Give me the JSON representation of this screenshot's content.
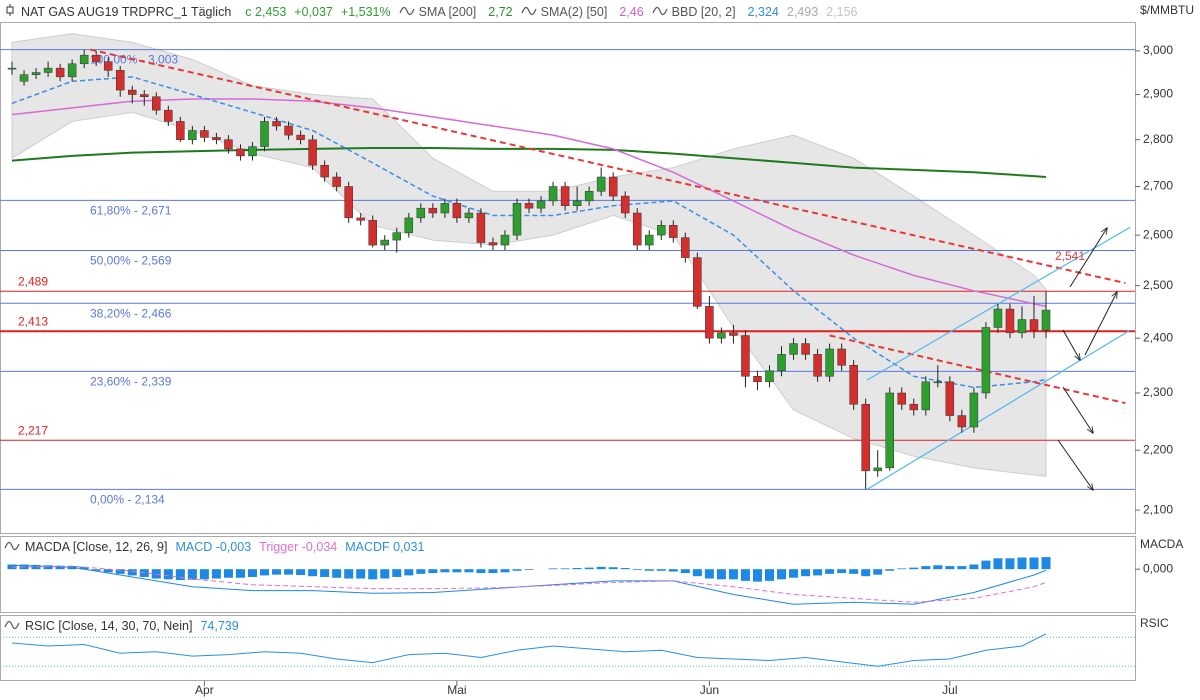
{
  "chart_data": [
    {
      "type": "candlestick",
      "title": "NAT GAS AUG19 TRDPRC_1 Täglich",
      "items": [
        {
          "text": "c 2,453",
          "color": "#2e9e2e"
        },
        {
          "text": "+0,037",
          "color": "#2e9e2e"
        },
        {
          "text": "+1,531%",
          "color": "#2e9e2e"
        },
        {
          "text": "SMA [200]",
          "color": "#555555",
          "icon": true
        },
        {
          "text": "2,72",
          "color": "#2e8b2e"
        },
        {
          "text": "SMA(2) [50]",
          "color": "#555555",
          "icon": true
        },
        {
          "text": "2,46",
          "color": "#d05fd0"
        },
        {
          "text": "BBD [20, 2]",
          "color": "#555555",
          "icon": true
        },
        {
          "text": "2,324",
          "color": "#2b8fe0"
        },
        {
          "text": "2,493",
          "color": "#aaaaaa"
        },
        {
          "text": "2,156",
          "color": "#c4c4c4"
        }
      ],
      "ylabel": "$/MMBTU",
      "log": true,
      "ylim": [
        2.063,
        3.068
      ],
      "yticks": [
        {
          "value": 2.1,
          "label": "2,100"
        },
        {
          "value": 2.2,
          "label": "2,200"
        },
        {
          "value": 2.3,
          "label": "2,300"
        },
        {
          "value": 2.4,
          "label": "2,400"
        },
        {
          "value": 2.5,
          "label": "2,500"
        },
        {
          "value": 2.6,
          "label": "2,600"
        },
        {
          "value": 2.7,
          "label": "2,700"
        },
        {
          "value": 2.8,
          "label": "2,800"
        },
        {
          "value": 2.9,
          "label": "2,900"
        },
        {
          "value": 3.0,
          "label": "3,000"
        }
      ],
      "xlim": [
        -1,
        93.4
      ],
      "xticks": [
        {
          "value": 16,
          "label": "Apr"
        },
        {
          "value": 37,
          "label": "Mai"
        },
        {
          "value": 58,
          "label": "Jun"
        },
        {
          "value": 78,
          "label": "Jul"
        }
      ],
      "up_color": "#2e9e2e",
      "down_color": "#d32f2f",
      "open": [
        2.958,
        2.93,
        2.945,
        2.95,
        2.96,
        2.94,
        2.97,
        2.99,
        2.975,
        2.955,
        2.91,
        2.9,
        2.895,
        2.865,
        2.84,
        2.8,
        2.82,
        2.805,
        2.8,
        2.78,
        2.765,
        2.785,
        2.84,
        2.83,
        2.81,
        2.8,
        2.745,
        2.72,
        2.7,
        2.635,
        2.63,
        2.58,
        2.59,
        2.605,
        2.635,
        2.655,
        2.645,
        2.665,
        2.635,
        2.645,
        2.585,
        2.58,
        2.6,
        2.665,
        2.655,
        2.67,
        2.7,
        2.66,
        2.67,
        2.69,
        2.72,
        2.68,
        2.645,
        2.58,
        2.6,
        2.62,
        2.595,
        2.555,
        2.46,
        2.4,
        2.41,
        2.405,
        2.33,
        2.32,
        2.34,
        2.37,
        2.39,
        2.37,
        2.33,
        2.38,
        2.35,
        2.28,
        2.165,
        2.17,
        2.3,
        2.28,
        2.27,
        2.32,
        2.32,
        2.26,
        2.24,
        2.3,
        2.42,
        2.455,
        2.41,
        2.435,
        2.415
      ],
      "high": [
        2.975,
        2.955,
        2.96,
        2.975,
        2.97,
        2.98,
        3.003,
        3.0,
        2.985,
        2.965,
        2.92,
        2.91,
        2.905,
        2.875,
        2.85,
        2.83,
        2.83,
        2.815,
        2.81,
        2.79,
        2.795,
        2.85,
        2.85,
        2.84,
        2.82,
        2.81,
        2.755,
        2.73,
        2.71,
        2.645,
        2.64,
        2.6,
        2.615,
        2.645,
        2.665,
        2.665,
        2.675,
        2.675,
        2.655,
        2.655,
        2.595,
        2.61,
        2.675,
        2.675,
        2.68,
        2.71,
        2.71,
        2.7,
        2.7,
        2.74,
        2.73,
        2.69,
        2.655,
        2.61,
        2.63,
        2.63,
        2.605,
        2.565,
        2.48,
        2.42,
        2.425,
        2.415,
        2.34,
        2.35,
        2.385,
        2.4,
        2.4,
        2.38,
        2.39,
        2.39,
        2.36,
        2.29,
        2.2,
        2.31,
        2.31,
        2.29,
        2.33,
        2.35,
        2.33,
        2.27,
        2.31,
        2.43,
        2.465,
        2.465,
        2.46,
        2.48,
        2.489
      ],
      "low": [
        2.945,
        2.92,
        2.935,
        2.94,
        2.93,
        2.93,
        2.96,
        2.965,
        2.94,
        2.895,
        2.88,
        2.875,
        2.855,
        2.83,
        2.795,
        2.79,
        2.795,
        2.79,
        2.77,
        2.755,
        2.755,
        2.775,
        2.82,
        2.8,
        2.79,
        2.735,
        2.71,
        2.69,
        2.625,
        2.62,
        2.575,
        2.57,
        2.565,
        2.595,
        2.625,
        2.635,
        2.635,
        2.625,
        2.625,
        2.575,
        2.57,
        2.57,
        2.59,
        2.645,
        2.645,
        2.66,
        2.65,
        2.65,
        2.66,
        2.68,
        2.67,
        2.635,
        2.57,
        2.57,
        2.59,
        2.585,
        2.545,
        2.455,
        2.39,
        2.39,
        2.39,
        2.31,
        2.305,
        2.31,
        2.33,
        2.36,
        2.36,
        2.32,
        2.32,
        2.34,
        2.27,
        2.134,
        2.155,
        2.165,
        2.27,
        2.26,
        2.26,
        2.31,
        2.25,
        2.23,
        2.23,
        2.29,
        2.41,
        2.4,
        2.4,
        2.4,
        2.4
      ],
      "close": [
        2.96,
        2.945,
        2.95,
        2.96,
        2.94,
        2.97,
        2.99,
        2.975,
        2.955,
        2.91,
        2.9,
        2.895,
        2.865,
        2.84,
        2.8,
        2.82,
        2.805,
        2.8,
        2.78,
        2.765,
        2.785,
        2.84,
        2.83,
        2.81,
        2.8,
        2.745,
        2.72,
        2.7,
        2.635,
        2.63,
        2.58,
        2.59,
        2.605,
        2.635,
        2.655,
        2.645,
        2.665,
        2.635,
        2.645,
        2.585,
        2.58,
        2.6,
        2.665,
        2.655,
        2.67,
        2.7,
        2.66,
        2.67,
        2.69,
        2.72,
        2.68,
        2.645,
        2.58,
        2.6,
        2.62,
        2.595,
        2.555,
        2.46,
        2.4,
        2.41,
        2.405,
        2.33,
        2.32,
        2.34,
        2.37,
        2.39,
        2.37,
        2.33,
        2.38,
        2.35,
        2.28,
        2.165,
        2.17,
        2.3,
        2.28,
        2.27,
        2.32,
        2.32,
        2.26,
        2.24,
        2.3,
        2.42,
        2.455,
        2.41,
        2.435,
        2.415,
        2.453
      ],
      "band": {
        "color": "#e4e4e4",
        "x": [
          0,
          5,
          10,
          15,
          20,
          25,
          30,
          35,
          40,
          45,
          50,
          55,
          60,
          65,
          70,
          75,
          80,
          85,
          86
        ],
        "upper": [
          3.02,
          3.04,
          3.02,
          2.98,
          2.92,
          2.9,
          2.89,
          2.76,
          2.69,
          2.69,
          2.72,
          2.74,
          2.78,
          2.81,
          2.76,
          2.68,
          2.6,
          2.52,
          2.493
        ],
        "lower": [
          2.76,
          2.84,
          2.86,
          2.82,
          2.77,
          2.74,
          2.62,
          2.59,
          2.58,
          2.6,
          2.64,
          2.6,
          2.42,
          2.27,
          2.22,
          2.19,
          2.17,
          2.158,
          2.156
        ]
      },
      "lines": [
        {
          "color": "#1f7a1f",
          "width": 2,
          "dash": false,
          "x": [
            0,
            5,
            10,
            15,
            20,
            25,
            30,
            35,
            40,
            45,
            50,
            55,
            60,
            65,
            70,
            75,
            80,
            85,
            86
          ],
          "values": [
            2.755,
            2.765,
            2.772,
            2.775,
            2.778,
            2.78,
            2.782,
            2.782,
            2.78,
            2.78,
            2.778,
            2.77,
            2.76,
            2.75,
            2.74,
            2.735,
            2.73,
            2.722,
            2.72
          ]
        },
        {
          "color": "#d46bd4",
          "width": 1.5,
          "dash": false,
          "x": [
            0,
            5,
            10,
            15,
            20,
            25,
            30,
            35,
            40,
            45,
            50,
            55,
            60,
            65,
            70,
            75,
            80,
            85,
            86
          ],
          "values": [
            2.855,
            2.87,
            2.885,
            2.89,
            2.89,
            2.885,
            2.87,
            2.85,
            2.83,
            2.81,
            2.78,
            2.73,
            2.67,
            2.61,
            2.56,
            2.52,
            2.49,
            2.465,
            2.46
          ]
        },
        {
          "color": "#3a8ee6",
          "width": 1.5,
          "dash": true,
          "x": [
            0,
            5,
            10,
            15,
            20,
            25,
            30,
            35,
            40,
            45,
            50,
            55,
            60,
            65,
            70,
            75,
            80,
            85,
            86
          ],
          "values": [
            2.88,
            2.93,
            2.94,
            2.9,
            2.86,
            2.82,
            2.75,
            2.68,
            2.64,
            2.64,
            2.66,
            2.67,
            2.6,
            2.49,
            2.4,
            2.33,
            2.31,
            2.32,
            2.324
          ]
        }
      ],
      "fib_levels": [
        {
          "value": 3.003,
          "label": "100,00% - 3,003"
        },
        {
          "value": 2.671,
          "label": "61,80% - 2,671"
        },
        {
          "value": 2.569,
          "label": "50,00% - 2,569"
        },
        {
          "value": 2.466,
          "label": "38,20% - 2,466"
        },
        {
          "value": 2.339,
          "label": "23,60% - 2,339"
        },
        {
          "value": 2.134,
          "label": "0,00% - 2,134"
        }
      ],
      "fib_color": "#5b78e0",
      "levels": [
        {
          "value": 2.489,
          "label": "2,489",
          "width": 1
        },
        {
          "value": 2.413,
          "label": "2,413",
          "width": 2
        },
        {
          "value": 2.217,
          "label": "2,217",
          "width": 1
        }
      ],
      "level_color": "#e02020",
      "trendlines": [
        {
          "x": [
            6.5,
            92.6
          ],
          "y": [
            3.003,
            2.505
          ],
          "color": "#e53935",
          "dash": true
        },
        {
          "x": [
            68,
            92.6
          ],
          "y": [
            2.405,
            2.282
          ],
          "color": "#e53935",
          "dash": true
        },
        {
          "x": [
            71.1,
            93
          ],
          "y": [
            2.134,
            2.415
          ],
          "color": "#4fb8f0",
          "dash": false
        },
        {
          "x": [
            71.1,
            93
          ],
          "y": [
            2.323,
            2.616
          ],
          "color": "#4fb8f0",
          "dash": false
        }
      ],
      "annotation": {
        "text": "2,541",
        "color": "#e53935"
      }
    },
    {
      "type": "macd",
      "title": "MACDA [Close, 12, 26, 9]",
      "items": [
        {
          "text": "MACD -0,003",
          "color": "#2b8fe0"
        },
        {
          "text": "Trigger -0,034",
          "color": "#e070c8"
        },
        {
          "text": "MACDF 0,031",
          "color": "#2b8fe0"
        }
      ],
      "ylabel": "MACDA",
      "ylim": [
        -0.11,
        0.075
      ],
      "yticks": [
        {
          "value": 0,
          "label": "0,000"
        }
      ],
      "histogram": {
        "color": "#1e88e5",
        "values": [
          0.012,
          0.012,
          0.011,
          0.01,
          0.009,
          0.008,
          0.006,
          -0.004,
          -0.008,
          -0.012,
          -0.016,
          -0.02,
          -0.024,
          -0.026,
          -0.028,
          -0.027,
          -0.026,
          -0.024,
          -0.022,
          -0.022,
          -0.02,
          -0.016,
          -0.014,
          -0.014,
          -0.015,
          -0.018,
          -0.02,
          -0.022,
          -0.024,
          -0.024,
          -0.026,
          -0.024,
          -0.02,
          -0.016,
          -0.012,
          -0.01,
          -0.008,
          -0.008,
          -0.008,
          -0.01,
          -0.01,
          -0.008,
          -0.004,
          -0.002,
          0.0,
          0.002,
          0.002,
          0.003,
          0.004,
          0.006,
          0.005,
          0.003,
          -0.002,
          -0.004,
          -0.004,
          -0.006,
          -0.01,
          -0.018,
          -0.024,
          -0.026,
          -0.026,
          -0.03,
          -0.032,
          -0.03,
          -0.026,
          -0.022,
          -0.018,
          -0.016,
          -0.012,
          -0.01,
          -0.012,
          -0.018,
          -0.014,
          -0.004,
          0.002,
          0.004,
          0.008,
          0.01,
          0.008,
          0.008,
          0.012,
          0.022,
          0.028,
          0.028,
          0.03,
          0.03,
          0.031
        ]
      },
      "lines": [
        {
          "color": "#1e88e5",
          "width": 1,
          "dash": false,
          "x": [
            0,
            5,
            10,
            15,
            20,
            25,
            30,
            35,
            40,
            45,
            50,
            55,
            60,
            65,
            70,
            75,
            80,
            85,
            86
          ],
          "values": [
            0.01,
            0.005,
            -0.02,
            -0.045,
            -0.055,
            -0.055,
            -0.062,
            -0.06,
            -0.05,
            -0.04,
            -0.03,
            -0.03,
            -0.065,
            -0.09,
            -0.085,
            -0.09,
            -0.06,
            -0.015,
            -0.003
          ]
        },
        {
          "color": "#e070c8",
          "width": 1,
          "dash": true,
          "x": [
            0,
            5,
            10,
            15,
            20,
            25,
            30,
            35,
            40,
            45,
            50,
            55,
            60,
            65,
            70,
            75,
            80,
            85,
            86
          ],
          "values": [
            0.005,
            0.008,
            -0.005,
            -0.025,
            -0.04,
            -0.045,
            -0.05,
            -0.05,
            -0.048,
            -0.042,
            -0.034,
            -0.03,
            -0.045,
            -0.065,
            -0.075,
            -0.085,
            -0.075,
            -0.045,
            -0.034
          ]
        }
      ]
    },
    {
      "type": "rsi",
      "title": "RSIC [Close, 14, 30, 70, Nein]",
      "items": [
        {
          "text": "74,739",
          "color": "#2b8fe0"
        }
      ],
      "ylabel": "RSIC",
      "ylim": [
        0,
        100
      ],
      "levels": [
        30,
        70
      ],
      "level_color": "#5aa8e8",
      "lines": [
        {
          "color": "#2b8fe0",
          "width": 1,
          "dash": false,
          "x": [
            0,
            3,
            6,
            9,
            12,
            15,
            18,
            21,
            24,
            27,
            30,
            33,
            36,
            39,
            42,
            45,
            48,
            51,
            54,
            57,
            60,
            63,
            66,
            69,
            72,
            75,
            78,
            81,
            84,
            86
          ],
          "values": [
            62,
            58,
            60,
            48,
            50,
            44,
            46,
            50,
            48,
            40,
            35,
            46,
            48,
            42,
            52,
            58,
            54,
            50,
            52,
            42,
            40,
            38,
            42,
            36,
            30,
            38,
            40,
            52,
            58,
            74.739
          ]
        }
      ]
    }
  ]
}
